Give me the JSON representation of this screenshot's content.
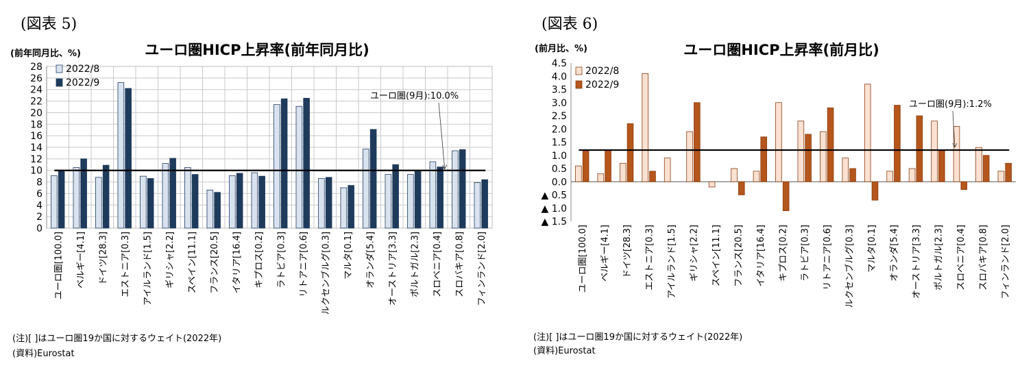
{
  "charts": [
    {
      "figure_label": "(図表 5)",
      "unit_label": "(前年同月比、%)",
      "note_lines": [
        "(注)[ ]はユーロ圏19か国に対するウェイト(2022年)",
        "(資料)Eurostat"
      ],
      "colors": {
        "s1": "#d9e2ef",
        "s2": "#1f3b5c",
        "stroke": "#1f3b5c"
      }
    },
    {
      "figure_label": "(図表 6)",
      "unit_label": "(前月比、%)",
      "note_lines": [
        "(注)[ ]はユーロ圏19か国に対するウェイト(2022年)",
        "(資料)Eurostat"
      ],
      "colors": {
        "s1": "#fbe1d2",
        "s2": "#b5561c",
        "stroke": "#8a3c0e"
      }
    }
  ],
  "chart_data": [
    {
      "type": "bar",
      "title": "ユーロ圏HICP上昇率(前年同月比)",
      "ylabel": "(前年同月比、%)",
      "ylim": [
        0,
        28
      ],
      "yticks": [
        0,
        2,
        4,
        6,
        8,
        10,
        12,
        14,
        16,
        18,
        20,
        22,
        24,
        26,
        28
      ],
      "ytick_labels": [
        "0",
        "2",
        "4",
        "6",
        "8",
        "10",
        "12",
        "14",
        "16",
        "18",
        "20",
        "22",
        "24",
        "26",
        "28"
      ],
      "grid": true,
      "legend_position": "top-left",
      "categories": [
        "ユーロ圏[100.0]",
        "ベルギー[4.1]",
        "ドイツ[28.3]",
        "エストニア[0.3]",
        "アイルランド[1.5]",
        "ギリシャ[2.2]",
        "スペイン[11.1]",
        "フランス[20.5]",
        "イタリア[16.4]",
        "キプロス[0.2]",
        "ラトビア[0.3]",
        "リトアニア[0.6]",
        "ルクセンブルグ[0.3]",
        "マルタ[0.1]",
        "オランダ[5.4]",
        "オーストリア[3.3]",
        "ポルトガル[2.3]",
        "スロベニア[0.4]",
        "スロバキア[0.8]",
        "フィンランド[2.0]"
      ],
      "series": [
        {
          "name": "2022/8",
          "values": [
            9.1,
            10.5,
            8.8,
            25.2,
            9.0,
            11.2,
            10.5,
            6.6,
            9.1,
            9.6,
            21.4,
            21.1,
            8.6,
            7.0,
            13.7,
            9.3,
            9.3,
            11.5,
            13.4,
            7.9
          ]
        },
        {
          "name": "2022/9",
          "values": [
            10.0,
            12.0,
            10.9,
            24.2,
            8.6,
            12.1,
            9.3,
            6.2,
            9.5,
            9.0,
            22.4,
            22.5,
            8.8,
            7.4,
            17.1,
            11.0,
            9.8,
            10.6,
            13.6,
            8.4
          ]
        }
      ],
      "reference_line": {
        "value": 10.0,
        "label": "ユーロ圏(9月):10.0%"
      }
    },
    {
      "type": "bar",
      "title": "ユーロ圏HICP上昇率(前月比)",
      "ylabel": "(前月比、%)",
      "ylim": [
        -1.5,
        4.5
      ],
      "yticks": [
        -1.5,
        -1.0,
        -0.5,
        0.0,
        0.5,
        1.0,
        1.5,
        2.0,
        2.5,
        3.0,
        3.5,
        4.0,
        4.5
      ],
      "ytick_labels": [
        "▲ 1.5",
        "▲ 1.0",
        "▲ 0.5",
        "0.0",
        "0.5",
        "1.0",
        "1.5",
        "2.0",
        "2.5",
        "3.0",
        "3.5",
        "4.0",
        "4.5"
      ],
      "grid": false,
      "legend_position": "top-left",
      "categories": [
        "ユーロ圏[100.0]",
        "ベルギー[4.1]",
        "ドイツ[28.3]",
        "エストニア[0.3]",
        "アイルランド[1.5]",
        "ギリシャ[2.2]",
        "スペイン[11.1]",
        "フランス[20.5]",
        "イタリア[16.4]",
        "キプロス[0.2]",
        "ラトビア[0.3]",
        "リトアニア[0.6]",
        "ルクセンブルグ[0.3]",
        "マルタ[0.1]",
        "オランダ[5.4]",
        "オーストリア[3.3]",
        "ポルトガル[2.3]",
        "スロベニア[0.4]",
        "スロバキア[0.8]",
        "フィンランド[2.0]"
      ],
      "series": [
        {
          "name": "2022/8",
          "values": [
            0.6,
            0.3,
            0.7,
            4.1,
            0.9,
            1.9,
            -0.2,
            0.5,
            0.4,
            3.0,
            2.3,
            1.9,
            0.9,
            3.7,
            0.4,
            0.5,
            2.3,
            2.1,
            1.3,
            0.4
          ]
        },
        {
          "name": "2022/9",
          "values": [
            1.2,
            1.2,
            2.2,
            0.4,
            0.0,
            3.0,
            0.0,
            -0.5,
            1.7,
            -1.1,
            1.8,
            2.8,
            0.5,
            -0.7,
            2.9,
            2.5,
            1.2,
            -0.3,
            1.0,
            0.7
          ]
        }
      ],
      "reference_line": {
        "value": 1.2,
        "label": "ユーロ圏(9月):1.2%"
      }
    }
  ]
}
